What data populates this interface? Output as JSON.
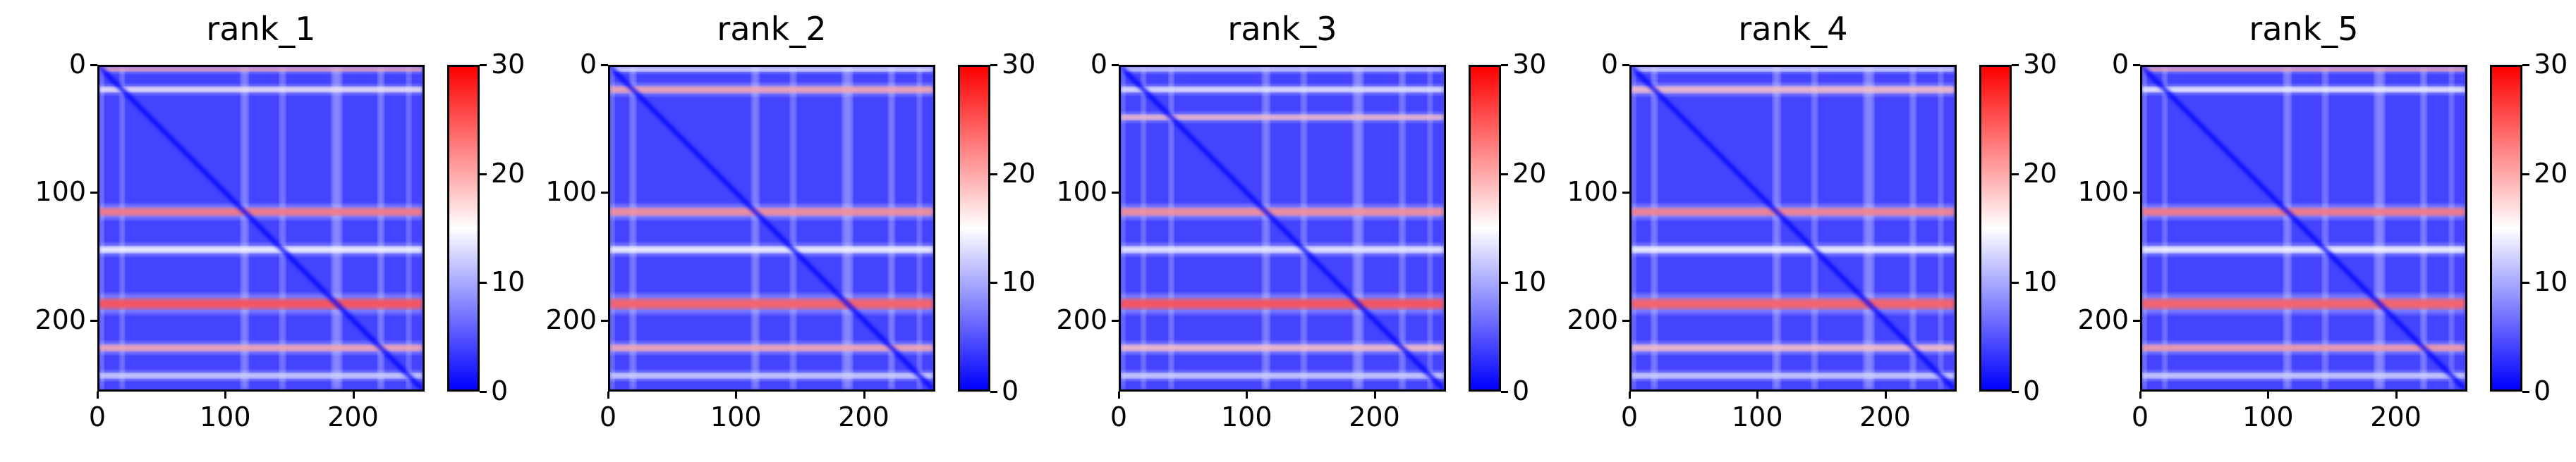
{
  "chart_data": [
    {
      "type": "heatmap",
      "title": "rank_1",
      "x_ticks": [
        "0",
        "100",
        "200"
      ],
      "y_ticks": [
        "0",
        "100",
        "200"
      ],
      "xlim": [
        0,
        255
      ],
      "ylim": [
        255,
        0
      ],
      "colorbar": {
        "ticks": [
          "0",
          "10",
          "20",
          "30"
        ],
        "range": [
          0,
          30
        ],
        "colormap": "bwr"
      },
      "bands": [
        {
          "row": 2,
          "value": 22,
          "width": 3
        },
        {
          "row": 18,
          "value": 16,
          "width": 4
        },
        {
          "row": 115,
          "value": 26,
          "width": 6
        },
        {
          "row": 145,
          "value": 15,
          "width": 5
        },
        {
          "row": 188,
          "value": 29,
          "width": 8
        },
        {
          "row": 223,
          "value": 22,
          "width": 5
        },
        {
          "row": 245,
          "value": 12,
          "width": 4
        }
      ]
    },
    {
      "type": "heatmap",
      "title": "rank_2",
      "x_ticks": [
        "0",
        "100",
        "200"
      ],
      "y_ticks": [
        "0",
        "100",
        "200"
      ],
      "xlim": [
        0,
        255
      ],
      "ylim": [
        255,
        0
      ],
      "colorbar": {
        "ticks": [
          "0",
          "10",
          "20",
          "30"
        ],
        "range": [
          0,
          30
        ],
        "colormap": "bwr"
      },
      "bands": [
        {
          "row": 2,
          "value": 14,
          "width": 3
        },
        {
          "row": 18,
          "value": 22,
          "width": 5
        },
        {
          "row": 115,
          "value": 24,
          "width": 6
        },
        {
          "row": 145,
          "value": 15,
          "width": 5
        },
        {
          "row": 188,
          "value": 28,
          "width": 8
        },
        {
          "row": 223,
          "value": 22,
          "width": 5
        },
        {
          "row": 245,
          "value": 12,
          "width": 4
        }
      ]
    },
    {
      "type": "heatmap",
      "title": "rank_3",
      "x_ticks": [
        "0",
        "100",
        "200"
      ],
      "y_ticks": [
        "0",
        "100",
        "200"
      ],
      "xlim": [
        0,
        255
      ],
      "ylim": [
        255,
        0
      ],
      "colorbar": {
        "ticks": [
          "0",
          "10",
          "20",
          "30"
        ],
        "range": [
          0,
          30
        ],
        "colormap": "bwr"
      },
      "bands": [
        {
          "row": 2,
          "value": 12,
          "width": 3
        },
        {
          "row": 18,
          "value": 14,
          "width": 4
        },
        {
          "row": 40,
          "value": 20,
          "width": 4
        },
        {
          "row": 115,
          "value": 24,
          "width": 6
        },
        {
          "row": 145,
          "value": 14,
          "width": 5
        },
        {
          "row": 188,
          "value": 29,
          "width": 8
        },
        {
          "row": 223,
          "value": 20,
          "width": 5
        },
        {
          "row": 245,
          "value": 12,
          "width": 4
        }
      ]
    },
    {
      "type": "heatmap",
      "title": "rank_4",
      "x_ticks": [
        "0",
        "100",
        "200"
      ],
      "y_ticks": [
        "0",
        "100",
        "200"
      ],
      "xlim": [
        0,
        255
      ],
      "ylim": [
        255,
        0
      ],
      "colorbar": {
        "ticks": [
          "0",
          "10",
          "20",
          "30"
        ],
        "range": [
          0,
          30
        ],
        "colormap": "bwr"
      },
      "bands": [
        {
          "row": 2,
          "value": 13,
          "width": 3
        },
        {
          "row": 18,
          "value": 20,
          "width": 5
        },
        {
          "row": 115,
          "value": 25,
          "width": 6
        },
        {
          "row": 145,
          "value": 15,
          "width": 5
        },
        {
          "row": 188,
          "value": 28,
          "width": 8
        },
        {
          "row": 223,
          "value": 20,
          "width": 5
        },
        {
          "row": 245,
          "value": 12,
          "width": 4
        }
      ]
    },
    {
      "type": "heatmap",
      "title": "rank_5",
      "x_ticks": [
        "0",
        "100",
        "200"
      ],
      "y_ticks": [
        "0",
        "100",
        "200"
      ],
      "xlim": [
        0,
        255
      ],
      "ylim": [
        255,
        0
      ],
      "colorbar": {
        "ticks": [
          "0",
          "10",
          "20",
          "30"
        ],
        "range": [
          0,
          30
        ],
        "colormap": "bwr"
      },
      "bands": [
        {
          "row": 2,
          "value": 22,
          "width": 3
        },
        {
          "row": 18,
          "value": 15,
          "width": 4
        },
        {
          "row": 115,
          "value": 26,
          "width": 6
        },
        {
          "row": 145,
          "value": 15,
          "width": 5
        },
        {
          "row": 188,
          "value": 28,
          "width": 8
        },
        {
          "row": 223,
          "value": 23,
          "width": 5
        },
        {
          "row": 245,
          "value": 12,
          "width": 4
        }
      ]
    }
  ]
}
